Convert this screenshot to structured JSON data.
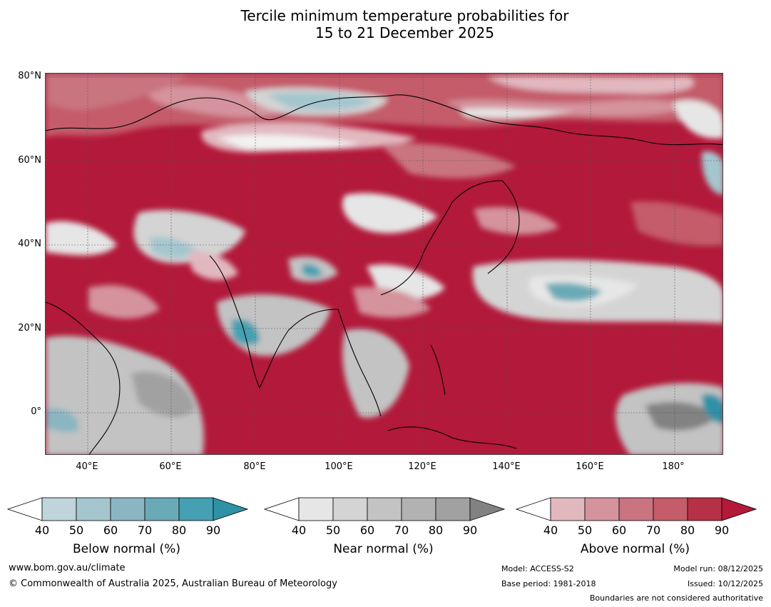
{
  "title_line1": "Tercile minimum temperature probabilities for",
  "title_line2": "15 to 21 December 2025",
  "lat_labels": [
    "80°N",
    "60°N",
    "40°N",
    "20°N",
    "0°"
  ],
  "lon_labels": [
    "40°E",
    "60°E",
    "80°E",
    "100°E",
    "120°E",
    "140°E",
    "160°E",
    "180°"
  ],
  "colorbars": [
    {
      "title": "Below normal (%)",
      "ticks": [
        "40",
        "50",
        "60",
        "70",
        "80",
        "90"
      ],
      "colors": [
        "#bfd4db",
        "#a5c6ce",
        "#8ab6c2",
        "#6aaab7",
        "#44a0b2",
        "#2f91a6"
      ]
    },
    {
      "title": "Near normal (%)",
      "ticks": [
        "40",
        "50",
        "60",
        "70",
        "80",
        "90"
      ],
      "colors": [
        "#e6e6e6",
        "#d4d4d4",
        "#c3c3c3",
        "#b2b2b2",
        "#a1a1a1",
        "#828282"
      ]
    },
    {
      "title": "Above normal (%)",
      "ticks": [
        "40",
        "50",
        "60",
        "70",
        "80",
        "90"
      ],
      "colors": [
        "#e2b8bf",
        "#d4939d",
        "#c97480",
        "#c45c6a",
        "#b73146",
        "#b2193a"
      ]
    }
  ],
  "footer": {
    "url": "www.bom.gov.au/climate",
    "copyright": "© Commonwealth of Australia 2025, Australian Bureau of Meteorology",
    "model": "Model: ACCESS-S2",
    "base_period": "Base period: 1981-2018",
    "model_run": "Model run: 08/12/2025",
    "issued": "Issued: 10/12/2025",
    "disclaimer": "Boundaries are not considered authoritative"
  }
}
